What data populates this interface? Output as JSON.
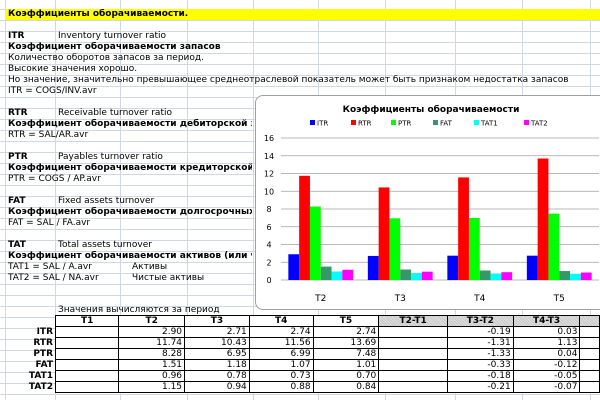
{
  "sheet": {
    "title": "Коэффициенты оборачиваемости.",
    "itr": {
      "code": "ITR",
      "name": "Inventory turnover ratio",
      "ru": "Коэффициент оборачиваемости запасов",
      "l1": "Количество оборотов запасов за период.",
      "l2": "Высокие значения хорошо.",
      "l3": "Но значение, значительно превышающее среднеотраслевой показатель может быть признаком недостатка запасов",
      "formula": "ITR = COGS/INV.avr"
    },
    "rtr": {
      "code": "RTR",
      "name": "Receivable turnover ratio",
      "ru": "Коэффициент оборачиваемости дебиторской задолженности",
      "formula": "RTR = SAL/AR.avr"
    },
    "ptr": {
      "code": "PTR",
      "name": "Payables turnover ratio",
      "ru": "Коэффициент оборачиваемости кредиторской задолженности",
      "formula": "PTR = COGS / AP.avr"
    },
    "fat": {
      "code": "FAT",
      "name": "Fixed assets turnover",
      "ru": "Коэффициент оборачиваемости долгосрочных активов",
      "formula": "FAT = SAL / FA.avr"
    },
    "tat": {
      "code": "TAT",
      "name": "Total assets turnover",
      "ru": "Коэффициент оборачиваемости активов (или чистых активов)",
      "f1": "TAT1 = SAL / A.avr",
      "f1note": "Активы",
      "f2": "TAT2 = SAL / NA.avr",
      "f2note": "Чистые активы"
    },
    "table_caption": "Значения вычисляются за период"
  },
  "table": {
    "headers": [
      "T1",
      "T2",
      "T3",
      "T4",
      "T5",
      "T2-T1",
      "T3-T2",
      "T4-T3",
      ""
    ],
    "rows": [
      {
        "label": "ITR",
        "cells": [
          "",
          "2.90",
          "2.71",
          "2.74",
          "2.74",
          "",
          "-0.19",
          "0.03",
          ""
        ]
      },
      {
        "label": "RTR",
        "cells": [
          "",
          "11.74",
          "10.43",
          "11.56",
          "13.69",
          "",
          "-1.31",
          "1.13",
          ""
        ]
      },
      {
        "label": "PTR",
        "cells": [
          "",
          "8.28",
          "6.95",
          "6.99",
          "7.48",
          "",
          "-1.33",
          "0.04",
          ""
        ]
      },
      {
        "label": "FAT",
        "cells": [
          "",
          "1.51",
          "1.18",
          "1.07",
          "1.01",
          "",
          "-0.33",
          "-0.12",
          ""
        ]
      },
      {
        "label": "TAT1",
        "cells": [
          "",
          "0.96",
          "0.78",
          "0.73",
          "0.70",
          "",
          "-0.18",
          "-0.05",
          ""
        ]
      },
      {
        "label": "TAT2",
        "cells": [
          "",
          "1.15",
          "0.94",
          "0.88",
          "0.84",
          "",
          "-0.21",
          "-0.07",
          ""
        ]
      }
    ]
  },
  "chart_data": {
    "type": "bar",
    "title": "Коэффициенты оборачиваемости",
    "categories": [
      "T2",
      "T3",
      "T4",
      "T5"
    ],
    "ylim": [
      0,
      16
    ],
    "yticks": [
      "0",
      "2",
      "4",
      "6",
      "8",
      "10",
      "12",
      "14",
      "16"
    ],
    "grid": true,
    "legend": "top",
    "series": [
      {
        "name": "ITR",
        "color": "#0000ff",
        "values": [
          2.9,
          2.71,
          2.74,
          2.74
        ]
      },
      {
        "name": "RTR",
        "color": "#ff0000",
        "values": [
          11.74,
          10.43,
          11.56,
          13.69
        ]
      },
      {
        "name": "PTR",
        "color": "#00ff00",
        "values": [
          8.28,
          6.95,
          6.99,
          7.48
        ]
      },
      {
        "name": "FAT",
        "color": "#339966",
        "values": [
          1.51,
          1.18,
          1.07,
          1.01
        ]
      },
      {
        "name": "TAT1",
        "color": "#00ffff",
        "values": [
          0.96,
          0.78,
          0.73,
          0.7
        ]
      },
      {
        "name": "TAT2",
        "color": "#ff00ff",
        "values": [
          1.15,
          0.94,
          0.88,
          0.84
        ]
      }
    ]
  }
}
